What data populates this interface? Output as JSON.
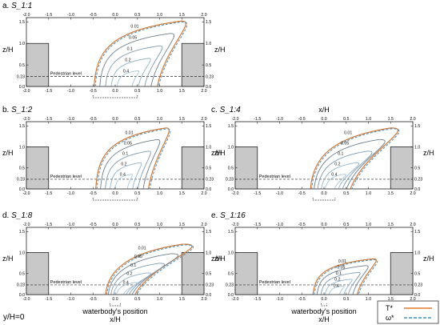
{
  "figure": {
    "footer_left": "y/H=0",
    "legend": {
      "entries": [
        {
          "label": "T*",
          "color": "#e07a2c",
          "style": "solid"
        },
        {
          "label": "ω*",
          "color": "#3a8fc4",
          "style": "dashed"
        }
      ]
    }
  },
  "chart_data": [
    {
      "id": "a",
      "type": "contour",
      "panel_label": "a.",
      "title": "S_1:1",
      "xlabel": "x/H",
      "ylabel": "z/H",
      "xlim": [
        -2.0,
        2.0
      ],
      "ylim": [
        0.0,
        1.6
      ],
      "xticks": [
        "-2.0",
        "-1.5",
        "-1.0",
        "-0.5",
        "0.0",
        "0.5",
        "1.0",
        "1.5",
        "2.0"
      ],
      "yticks_left": [
        "0.0",
        "0.23",
        "0.5",
        "1.0",
        "1.5"
      ],
      "yticks_right": [
        "0.0",
        "0.23",
        "0.5",
        "1.0",
        "1.5"
      ],
      "pedestrian_level_label": "Pedestrian level",
      "pedestrian_level": 0.23,
      "buildings": [
        {
          "x0": -2.0,
          "x1": -1.5,
          "h": 1.0
        },
        {
          "x0": 1.5,
          "x1": 2.0,
          "h": 1.0
        }
      ],
      "waterbody": [
        -0.5,
        0.5
      ],
      "contour_levels": [
        "0.01",
        "0.05",
        "0.1",
        "0.2",
        "0.4"
      ],
      "plume": {
        "base_left": -0.55,
        "base_right": 0.95,
        "sweep": 0.9,
        "top": 1.52
      },
      "show_waterbody_label": false,
      "show_xlabel_top": false
    },
    {
      "id": "b",
      "type": "contour",
      "panel_label": "b.",
      "title": "S_1:2",
      "xlabel": "x/H",
      "ylabel": "z/H",
      "xlim": [
        -2.0,
        2.0
      ],
      "ylim": [
        0.0,
        1.6
      ],
      "xticks": [
        "-2.0",
        "-1.5",
        "-1.0",
        "-0.5",
        "0.0",
        "0.5",
        "1.0",
        "1.5",
        "2.0"
      ],
      "yticks_left": [
        "0.0",
        "0.23",
        "0.5",
        "1.0",
        "1.5"
      ],
      "yticks_right": [
        "0.0",
        "0.23",
        "0.5",
        "1.0",
        "1.5"
      ],
      "pedestrian_level_label": "Pedestrian level",
      "pedestrian_level": 0.23,
      "buildings": [
        {
          "x0": -2.0,
          "x1": -1.5,
          "h": 1.0
        },
        {
          "x0": 1.5,
          "x1": 2.0,
          "h": 1.0
        }
      ],
      "waterbody": [
        -0.5,
        0.5
      ],
      "contour_levels": [
        "0.01",
        "0.05",
        "0.1",
        "0.2",
        "0.4"
      ],
      "plume": {
        "base_left": -0.5,
        "base_right": 0.75,
        "sweep": 0.65,
        "top": 1.45
      },
      "show_waterbody_label": false,
      "show_xlabel_top": false
    },
    {
      "id": "c",
      "type": "contour",
      "panel_label": "c.",
      "title": "S_1:4",
      "xlabel": "x/H",
      "ylabel": "z/H",
      "xlim": [
        -2.0,
        2.0
      ],
      "ylim": [
        0.0,
        1.6
      ],
      "xticks": [
        "-2.0",
        "-1.5",
        "-1.0",
        "-0.5",
        "0.0",
        "0.5",
        "1.0",
        "1.5",
        "2.0"
      ],
      "yticks_left": [
        "0.0",
        "0.23",
        "0.5",
        "1.0",
        "1.5"
      ],
      "yticks_right": [
        "0.0",
        "0.23",
        "0.5",
        "1.0",
        "1.5"
      ],
      "pedestrian_level_label": "Pedestrian level",
      "pedestrian_level": 0.23,
      "buildings": [
        {
          "x0": -2.0,
          "x1": -1.5,
          "h": 1.0
        },
        {
          "x0": 1.5,
          "x1": 2.0,
          "h": 1.0
        }
      ],
      "waterbody": [
        -0.25,
        0.25
      ],
      "contour_levels": [
        "0.01",
        "0.05",
        "0.1",
        "0.2",
        "0.4"
      ],
      "plume": {
        "base_left": -0.35,
        "base_right": 0.6,
        "sweep": 1.5,
        "top": 1.45
      },
      "show_waterbody_label": false,
      "show_xlabel_top": true
    },
    {
      "id": "d",
      "type": "contour",
      "panel_label": "d.",
      "title": "S_1:8",
      "xlabel": "x/H",
      "ylabel": "z/H",
      "xlim": [
        -2.0,
        2.0
      ],
      "ylim": [
        0.0,
        1.6
      ],
      "xticks": [
        "-2.0",
        "-1.5",
        "-1.0",
        "-0.5",
        "0.0",
        "0.5",
        "1.0",
        "1.5",
        "2.0"
      ],
      "yticks_left": [
        "0.0",
        "0.23",
        "0.5",
        "1.0",
        "1.5"
      ],
      "yticks_right": [
        "0.0",
        "0.23",
        "0.5",
        "1.0",
        "1.5"
      ],
      "pedestrian_level_label": "Pedestrian level",
      "pedestrian_level": 0.23,
      "buildings": [
        {
          "x0": -2.0,
          "x1": -1.5,
          "h": 1.0
        },
        {
          "x0": 1.5,
          "x1": 2.0,
          "h": 1.0
        }
      ],
      "waterbody": [
        -0.12,
        0.12
      ],
      "contour_levels": [
        "0.01",
        "0.05",
        "0.1",
        "0.2",
        "0.4"
      ],
      "plume": {
        "base_left": -0.25,
        "base_right": 0.45,
        "sweep": 1.8,
        "top": 1.2
      },
      "show_waterbody_label": true,
      "waterbody_label": "waterbody's position",
      "show_xlabel_top": false
    },
    {
      "id": "e",
      "type": "contour",
      "panel_label": "e.",
      "title": "S_1:16",
      "xlabel": "x/H",
      "ylabel": "z/H",
      "xlim": [
        -2.0,
        2.0
      ],
      "ylim": [
        0.0,
        1.6
      ],
      "xticks": [
        "-2.0",
        "-1.5",
        "-1.0",
        "-0.5",
        "0.0",
        "0.5",
        "1.0",
        "1.5",
        "2.0"
      ],
      "yticks_left": [
        "0.0",
        "0.23",
        "0.5",
        "1.0",
        "1.5"
      ],
      "yticks_right": [
        "0.0",
        "0.23",
        "0.5",
        "1.0",
        "1.5"
      ],
      "pedestrian_level_label": "Pedestrian level",
      "pedestrian_level": 0.23,
      "buildings": [
        {
          "x0": -2.0,
          "x1": -1.5,
          "h": 1.0
        },
        {
          "x0": 1.5,
          "x1": 2.0,
          "h": 1.0
        }
      ],
      "waterbody": [
        -0.06,
        0.06
      ],
      "contour_levels": [
        "0.01",
        "0.05",
        "0.1",
        "0.2",
        "0.4"
      ],
      "plume": {
        "base_left": -0.3,
        "base_right": 0.75,
        "sweep": 0.6,
        "top": 0.85
      },
      "show_waterbody_label": true,
      "waterbody_label": "waterbody's position",
      "show_xlabel_top": false
    }
  ]
}
